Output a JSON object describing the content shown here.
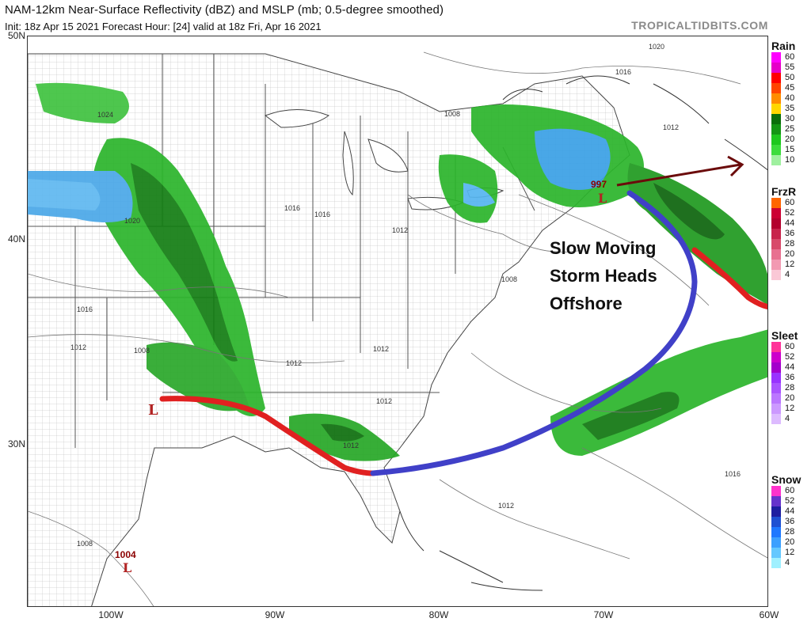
{
  "header": {
    "title": "NAM-12km Near-Surface Reflectivity (dBZ) and MSLP (mb; 0.5-degree smoothed)",
    "subtitle": "Init: 18z Apr 15 2021   Forecast Hour: [24]   valid at 18z Fri, Apr 16 2021",
    "brand": "TROPICALTIDBITS.COM"
  },
  "axes": {
    "latitudes": [
      "50N",
      "40N",
      "30N"
    ],
    "longitudes": [
      "100W",
      "90W",
      "80W",
      "70W",
      "60W"
    ]
  },
  "annotation": {
    "line1": "Slow Moving",
    "line2": "Storm Heads",
    "line3": "Offshore"
  },
  "pressure": {
    "low_center_value": "997",
    "gulf_low_value": "1004",
    "low_symbol": "L",
    "isobar_labels": [
      "1020",
      "1016",
      "1008",
      "1012",
      "1024",
      "1020",
      "1016",
      "1016",
      "1012",
      "1016",
      "1012",
      "1012",
      "1012",
      "1012",
      "1008",
      "1016",
      "1012",
      "1008",
      "1008",
      "1012"
    ]
  },
  "colorbars": {
    "rain": {
      "title": "Rain",
      "levels": [
        "60",
        "55",
        "50",
        "45",
        "40",
        "35",
        "30",
        "25",
        "20",
        "15",
        "10"
      ],
      "colors": [
        "#ff00ff",
        "#e600c8",
        "#ff0000",
        "#ff4500",
        "#ff8c00",
        "#ffd700",
        "#0a6e0a",
        "#149614",
        "#1ec81e",
        "#3cdc3c",
        "#9ff09f"
      ]
    },
    "frzr": {
      "title": "FrzR",
      "levels": [
        "60",
        "52",
        "44",
        "36",
        "28",
        "20",
        "12",
        "4"
      ],
      "colors": [
        "#ff6600",
        "#cc0033",
        "#b3002d",
        "#c8244b",
        "#d84a6a",
        "#e87090",
        "#f29ab2",
        "#fac8d6"
      ]
    },
    "sleet": {
      "title": "Sleet",
      "levels": [
        "60",
        "52",
        "44",
        "36",
        "28",
        "20",
        "12",
        "4"
      ],
      "colors": [
        "#ff3399",
        "#cc00cc",
        "#a300cc",
        "#9933ff",
        "#aa55ff",
        "#bb77ff",
        "#cc99ff",
        "#ddbbff"
      ]
    },
    "snow": {
      "title": "Snow",
      "levels": [
        "60",
        "52",
        "44",
        "36",
        "28",
        "20",
        "12",
        "4"
      ],
      "colors": [
        "#ff33cc",
        "#6633cc",
        "#1e1ea0",
        "#1e50d2",
        "#1e78ff",
        "#3ca0ff",
        "#64c8ff",
        "#a0f0ff"
      ]
    }
  }
}
